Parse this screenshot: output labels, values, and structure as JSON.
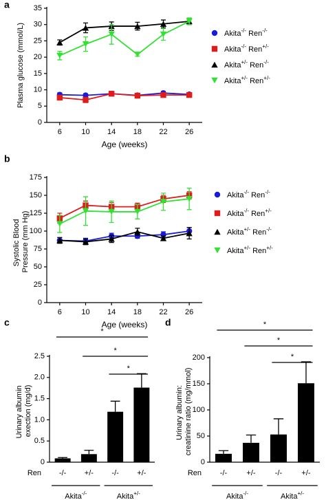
{
  "chart_data": [
    {
      "type": "line",
      "panel": "a",
      "ylabel": "Plasma glucose (mmol/L)",
      "xlabel": "Age (weeks)",
      "x": [
        6,
        10,
        14,
        18,
        22,
        26
      ],
      "xlim": [
        4,
        28
      ],
      "xticks": [
        6,
        10,
        14,
        18,
        22,
        26
      ],
      "ylim": [
        0,
        35
      ],
      "yticks": [
        0,
        5,
        10,
        15,
        20,
        25,
        30,
        35
      ],
      "legend": "right",
      "series": [
        {
          "name": "Akita-/- Ren-/-",
          "color": "#1a1adb",
          "marker": "circle",
          "values": [
            8.5,
            8.3,
            8.8,
            8.3,
            9.0,
            8.6
          ],
          "errors": [
            0.6,
            0.5,
            0.5,
            0.4,
            0.5,
            0.4
          ]
        },
        {
          "name": "Akita-/- Ren+/-",
          "color": "#e01b1b",
          "marker": "square",
          "values": [
            7.6,
            6.9,
            8.8,
            8.2,
            8.4,
            8.4
          ],
          "errors": [
            0.7,
            0.8,
            0.5,
            0.4,
            0.5,
            0.4
          ]
        },
        {
          "name": "Akita+/- Ren-/-",
          "color": "#000000",
          "marker": "triangle-up",
          "values": [
            24.5,
            29,
            29.5,
            29.5,
            30.2,
            31
          ],
          "errors": [
            0.8,
            1.5,
            1.3,
            1.2,
            1.2,
            1.0
          ]
        },
        {
          "name": "Akita+/- Ren+/-",
          "color": "#33e133",
          "marker": "triangle-down",
          "values": [
            20.5,
            24,
            27,
            20.8,
            27,
            31
          ],
          "errors": [
            1.3,
            2.2,
            3.0,
            0.5,
            1.8,
            1.0
          ]
        }
      ]
    },
    {
      "type": "line",
      "panel": "b",
      "ylabel": "Systolic Blood Pressure (mm Hg)",
      "xlabel": "Age (weeks)",
      "x": [
        6,
        10,
        14,
        18,
        22,
        26
      ],
      "xlim": [
        4,
        28
      ],
      "xticks": [
        6,
        10,
        14,
        18,
        22,
        26
      ],
      "ylim": [
        0,
        175
      ],
      "yticks": [
        0,
        25,
        50,
        75,
        100,
        125,
        150,
        175
      ],
      "legend": "right",
      "series": [
        {
          "name": "Akita-/- Ren-/-",
          "color": "#1a1adb",
          "marker": "circle",
          "values": [
            87,
            86,
            93,
            93,
            95,
            100
          ],
          "errors": [
            4,
            4,
            4,
            3,
            4,
            5
          ]
        },
        {
          "name": "Akita-/- Ren+/-",
          "color": "#e01b1b",
          "marker": "square",
          "values": [
            118,
            136,
            134,
            134,
            145,
            150
          ],
          "errors": [
            7,
            6,
            6,
            5,
            5,
            5
          ]
        },
        {
          "name": "Akita+/- Ren-/-",
          "color": "#000000",
          "marker": "triangle-up",
          "values": [
            87,
            85,
            89,
            99,
            90,
            97
          ],
          "errors": [
            4,
            4,
            5,
            5,
            3,
            8
          ]
        },
        {
          "name": "Akita+/- Ren+/-",
          "color": "#33e133",
          "marker": "triangle-down",
          "values": [
            110,
            128,
            127,
            127,
            141,
            145
          ],
          "errors": [
            12,
            20,
            15,
            10,
            12,
            15
          ]
        }
      ]
    },
    {
      "type": "bar",
      "panel": "c",
      "ylabel": "Urinary albumin exection (mg/d)",
      "row_label": "Ren",
      "categories": [
        "-/-",
        "+/-",
        "-/-",
        "+/-"
      ],
      "groups": [
        "Akita-/-",
        "Akita+/-"
      ],
      "values": [
        0.09,
        0.19,
        1.19,
        1.76
      ],
      "errors": [
        0.02,
        0.09,
        0.25,
        0.33
      ],
      "color": "#000000",
      "ylim": [
        0,
        2.5
      ],
      "yticks": [
        0,
        0.5,
        {
          "value": 1,
          "label": "1.0"
        },
        1.5,
        {
          "value": 2,
          "label": "2.0"
        },
        2.5
      ],
      "annotations": [
        "*",
        "*",
        "*"
      ]
    },
    {
      "type": "bar",
      "panel": "d",
      "ylabel": "Urinary albumin: creatinine ratio (mg/mmol)",
      "row_label": "Ren",
      "categories": [
        "-/-",
        "+/-",
        "-/-",
        "+/-"
      ],
      "groups": [
        "Akita-/-",
        "Akita+/-"
      ],
      "values": [
        16,
        37,
        53,
        151
      ],
      "errors": [
        6,
        15,
        30,
        41
      ],
      "color": "#000000",
      "ylim": [
        0,
        200
      ],
      "yticks": [
        0,
        50,
        100,
        150,
        200
      ],
      "annotations": [
        "*",
        "*",
        "*"
      ]
    }
  ]
}
